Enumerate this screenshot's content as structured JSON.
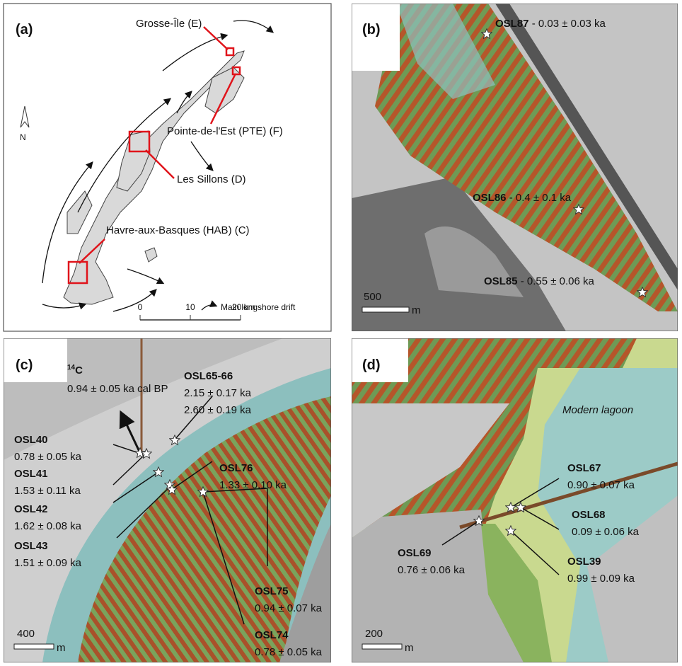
{
  "panels": [
    {
      "label": "(a)",
      "places": [
        "Grosse-Île (E)",
        "Pointe-de-l'Est (PTE) (F)",
        "Les Sillons (D)",
        "Havre-aux-Basques (HAB) (C)"
      ],
      "north": "N",
      "legend": "Main longshore drift",
      "scale": [
        "0",
        "10",
        "20 km"
      ]
    },
    {
      "label": "(b)",
      "samples": [
        {
          "id": "OSL87",
          "age": "- 0.03 ± 0.03 ka"
        },
        {
          "id": "OSL86",
          "age": "- 0.4 ± 0.1 ka"
        },
        {
          "id": "OSL85",
          "age": "- 0.55 ± 0.06 ka"
        }
      ],
      "scale": [
        "500",
        "m"
      ]
    },
    {
      "label": "(c)",
      "radiocarbon": {
        "mass": "14",
        "element": "C",
        "age": "0.94 ± 0.05 ka cal BP"
      },
      "samples": [
        {
          "id": "OSL65-66",
          "ages": [
            "2.15 ± 0.17 ka",
            "2.60 ± 0.19 ka"
          ]
        },
        {
          "id": "OSL40",
          "ages": [
            "0.78 ± 0.05 ka"
          ]
        },
        {
          "id": "OSL41",
          "ages": [
            "1.53 ± 0.11 ka"
          ]
        },
        {
          "id": "OSL42",
          "ages": [
            "1.62 ± 0.08 ka"
          ]
        },
        {
          "id": "OSL43",
          "ages": [
            "1.51 ± 0.09 ka"
          ]
        },
        {
          "id": "OSL76",
          "ages": [
            "1.33 ± 0.10 ka"
          ]
        },
        {
          "id": "OSL75",
          "ages": [
            "0.94 ± 0.07 ka"
          ]
        },
        {
          "id": "OSL74",
          "ages": [
            "0.78 ± 0.05 ka"
          ]
        }
      ],
      "scale": [
        "400",
        "m"
      ]
    },
    {
      "label": "(d)",
      "note": "Modern lagoon",
      "samples": [
        {
          "id": "OSL67",
          "ages": [
            "0.90 ± 0.07 ka"
          ]
        },
        {
          "id": "OSL68",
          "ages": [
            "0.09 ± 0.06 ka"
          ]
        },
        {
          "id": "OSL39",
          "ages": [
            "0.99 ± 0.09 ka"
          ]
        },
        {
          "id": "OSL69",
          "ages": [
            "0.76 ± 0.06 ka"
          ]
        }
      ],
      "scale": [
        "200",
        "m"
      ]
    }
  ]
}
